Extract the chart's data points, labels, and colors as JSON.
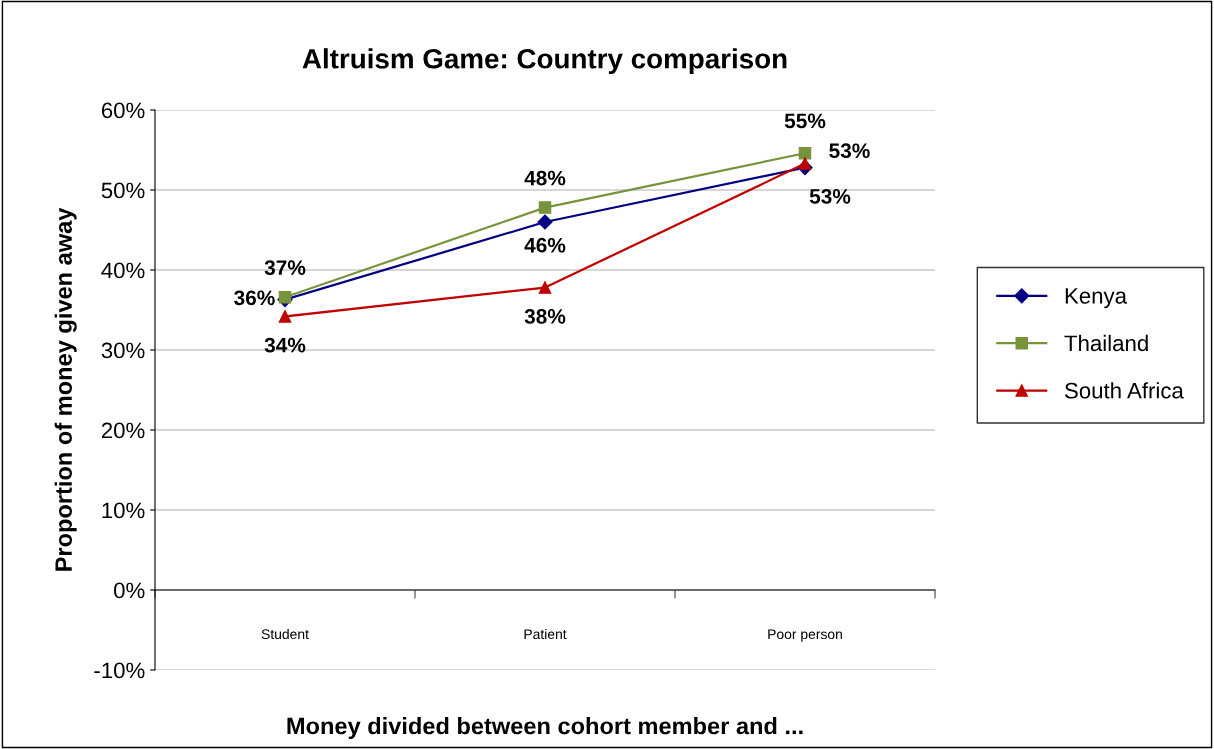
{
  "chart_data": {
    "type": "line",
    "title": "Altruism Game: Country comparison",
    "xlabel": "Money divided between cohort member and ...",
    "ylabel": "Proportion of money given away",
    "categories": [
      "Student",
      "Patient",
      "Poor person"
    ],
    "series": [
      {
        "name": "Kenya",
        "color": "#000080",
        "marker": "diamond",
        "values": [
          36.3,
          46.0,
          52.8
        ],
        "value_labels": [
          "36%",
          "46%",
          "53%"
        ]
      },
      {
        "name": "Thailand",
        "color": "#77933c",
        "marker": "square",
        "values": [
          36.6,
          47.8,
          54.6
        ],
        "value_labels": [
          "37%",
          "48%",
          "55%"
        ]
      },
      {
        "name": "South Africa",
        "color": "#c00000",
        "marker": "triangle",
        "values": [
          34.2,
          37.8,
          53.3
        ],
        "value_labels": [
          "34%",
          "38%",
          "53%"
        ]
      }
    ],
    "ylim": [
      -10,
      60
    ],
    "yticks": [
      {
        "value": -10,
        "label": "-10%"
      },
      {
        "value": 0,
        "label": "0%"
      },
      {
        "value": 10,
        "label": "10%"
      },
      {
        "value": 20,
        "label": "20%"
      },
      {
        "value": 30,
        "label": "30%"
      },
      {
        "value": 40,
        "label": "40%"
      },
      {
        "value": 50,
        "label": "50%"
      },
      {
        "value": 60,
        "label": "60%"
      }
    ],
    "grid": "y",
    "legend": "right",
    "line_style": "solid"
  }
}
